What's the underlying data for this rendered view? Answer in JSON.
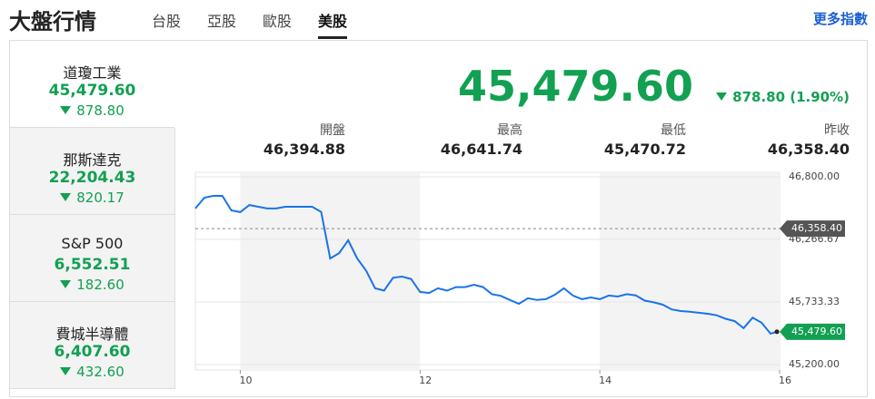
{
  "header": {
    "title": "大盤行情",
    "tabs": [
      {
        "label": "台股",
        "active": false
      },
      {
        "label": "亞股",
        "active": false
      },
      {
        "label": "歐股",
        "active": false
      },
      {
        "label": "美股",
        "active": true
      }
    ],
    "more_link": "更多指數"
  },
  "indices": [
    {
      "name": "道瓊工業",
      "value": "45,479.60",
      "change": "878.80",
      "selected": true
    },
    {
      "name": "那斯達克",
      "value": "22,204.43",
      "change": "820.17",
      "selected": false
    },
    {
      "name": "S&P 500",
      "value": "6,552.51",
      "change": "182.60",
      "selected": false
    },
    {
      "name": "費城半導體",
      "value": "6,407.60",
      "change": "432.60",
      "selected": false
    }
  ],
  "quote": {
    "value": "45,479.60",
    "change": "878.80 (1.90%)",
    "stats": [
      {
        "label": "開盤",
        "value": "46,394.88"
      },
      {
        "label": "最高",
        "value": "46,641.74"
      },
      {
        "label": "最低",
        "value": "45,470.72"
      },
      {
        "label": "昨收",
        "value": "46,358.40"
      }
    ]
  },
  "chart_data": {
    "type": "line",
    "x": [
      9.5,
      9.6,
      9.7,
      9.8,
      9.9,
      10.0,
      10.1,
      10.2,
      10.3,
      10.4,
      10.5,
      10.6,
      10.7,
      10.8,
      10.9,
      11.0,
      11.1,
      11.2,
      11.3,
      11.4,
      11.5,
      11.6,
      11.7,
      11.8,
      11.9,
      12.0,
      12.1,
      12.2,
      12.3,
      12.4,
      12.5,
      12.6,
      12.7,
      12.8,
      12.9,
      13.0,
      13.1,
      13.2,
      13.3,
      13.4,
      13.5,
      13.6,
      13.7,
      13.8,
      13.9,
      14.0,
      14.1,
      14.2,
      14.3,
      14.4,
      14.5,
      14.6,
      14.7,
      14.8,
      14.9,
      15.0,
      15.1,
      15.2,
      15.3,
      15.4,
      15.5,
      15.6,
      15.7,
      15.8,
      15.9,
      15.97
    ],
    "series": [
      {
        "color": "#1a73e8",
        "values": [
          46530,
          46622,
          46638,
          46638,
          46514,
          46499,
          46560,
          46545,
          46530,
          46530,
          46545,
          46545,
          46545,
          46545,
          46500,
          46104,
          46150,
          46259,
          46104,
          46000,
          45850,
          45830,
          45940,
          45950,
          45930,
          45819,
          45810,
          45850,
          45830,
          45860,
          45860,
          45880,
          45860,
          45800,
          45785,
          45750,
          45718,
          45765,
          45750,
          45757,
          45795,
          45850,
          45788,
          45757,
          45772,
          45757,
          45788,
          45780,
          45800,
          45790,
          45745,
          45730,
          45710,
          45670,
          45656,
          45650,
          45641,
          45633,
          45620,
          45590,
          45570,
          45510,
          45600,
          45556,
          45463,
          45479.6
        ]
      }
    ],
    "xlim": [
      9.5,
      16
    ],
    "ylim": [
      45200,
      46800
    ],
    "xticks": [
      10,
      12,
      14,
      16
    ],
    "yticks": [
      {
        "value": 46800,
        "label": "46,800.00"
      },
      {
        "value": 46266.67,
        "label": "46,266.67"
      },
      {
        "value": 45733.33,
        "label": "45,733.33"
      },
      {
        "value": 45200,
        "label": "45,200.00"
      }
    ],
    "grid": true,
    "reference_line": {
      "value": 46358.4,
      "label": "46,358.40",
      "color": "#555555"
    },
    "last_label": {
      "value": 45479.6,
      "label": "45,479.60",
      "color": "#12a052"
    }
  }
}
